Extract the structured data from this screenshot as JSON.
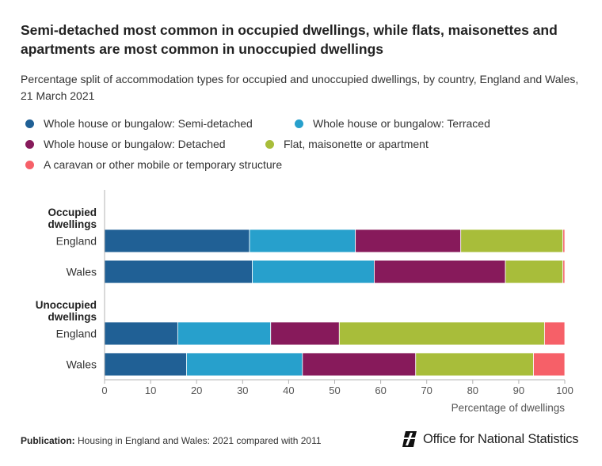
{
  "chart_data": {
    "type": "bar",
    "orientation": "horizontal",
    "stacked": true,
    "title": "Semi-detached most common in occupied dwellings, while flats, maisonettes and apartments are most common in unoccupied dwellings",
    "subtitle": "Percentage split of accommodation types for occupied and unoccupied dwellings, by country, England and Wales, 21 March 2021",
    "xlabel": "Percentage of dwellings",
    "xlim": [
      0,
      100
    ],
    "xticks": [
      "0",
      "10",
      "20",
      "30",
      "40",
      "50",
      "60",
      "70",
      "80",
      "90",
      "100"
    ],
    "grid": false,
    "legend_position": "top",
    "groups": [
      {
        "label": "Occupied dwellings",
        "categories": [
          "England",
          "Wales"
        ]
      },
      {
        "label": "Unoccupied dwellings",
        "categories": [
          "England",
          "Wales"
        ]
      }
    ],
    "series": [
      {
        "name": "Whole house or bungalow: Semi-detached",
        "color": "#206095",
        "values": [
          31.5,
          32.1,
          15.9,
          17.8
        ]
      },
      {
        "name": "Whole house or bungalow: Terraced",
        "color": "#27a0cc",
        "values": [
          23.0,
          26.5,
          20.2,
          25.2
        ]
      },
      {
        "name": "Whole house or bungalow: Detached",
        "color": "#871a5b",
        "values": [
          22.9,
          28.5,
          14.9,
          24.6
        ]
      },
      {
        "name": "Flat, maisonette or apartment",
        "color": "#a8bd3a",
        "values": [
          22.2,
          12.5,
          44.6,
          25.6
        ]
      },
      {
        "name": "A caravan or other mobile or temporary structure",
        "color": "#f66068",
        "values": [
          0.4,
          0.4,
          4.4,
          6.8
        ]
      }
    ]
  },
  "footer": {
    "publication_label": "Publication:",
    "publication_text": "Housing in England and Wales: 2021 compared with 2011"
  },
  "branding": {
    "logo_text": "Office for National Statistics",
    "logo_icon": "ons-logo-icon"
  }
}
